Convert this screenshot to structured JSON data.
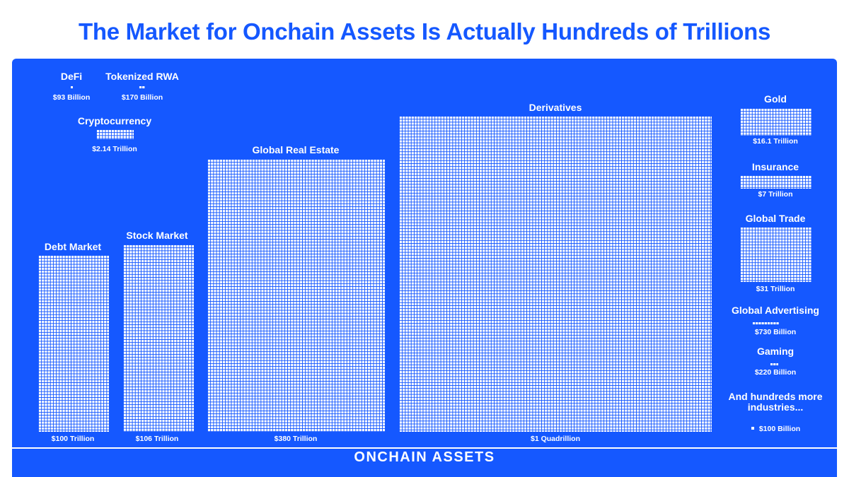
{
  "colors": {
    "brand_blue": "#1558ff",
    "text_white": "#ffffff"
  },
  "chart_data": {
    "type": "waffle",
    "title": "The Market for Onchain Assets Is Actually Hundreds of Trillions",
    "unit_square": "$100 Billion",
    "unit_value_trillions": 0.1,
    "items": [
      {
        "name": "DeFi",
        "label": "$93 Billion",
        "value_trillions": 0.093
      },
      {
        "name": "Tokenized RWA",
        "label": "$170 Billion",
        "value_trillions": 0.17
      },
      {
        "name": "Cryptocurrency",
        "label": "$2.14 Trillion",
        "value_trillions": 2.14
      },
      {
        "name": "Debt Market",
        "label": "$100 Trillion",
        "value_trillions": 100
      },
      {
        "name": "Stock Market",
        "label": "$106 Trillion",
        "value_trillions": 106
      },
      {
        "name": "Global Real Estate",
        "label": "$380 Trillion",
        "value_trillions": 380
      },
      {
        "name": "Derivatives",
        "label": "$1 Quadrillion",
        "value_trillions": 1000
      },
      {
        "name": "Gold",
        "label": "$16.1 Trillion",
        "value_trillions": 16.1
      },
      {
        "name": "Insurance",
        "label": "$7 Trillion",
        "value_trillions": 7
      },
      {
        "name": "Global Trade",
        "label": "$31 Trillion",
        "value_trillions": 31
      },
      {
        "name": "Global Advertising",
        "label": "$730 Billion",
        "value_trillions": 0.73
      },
      {
        "name": "Gaming",
        "label": "$220 Billion",
        "value_trillions": 0.22
      }
    ],
    "note": "And hundreds more industries...",
    "footer": "ONCHAIN ASSETS"
  }
}
